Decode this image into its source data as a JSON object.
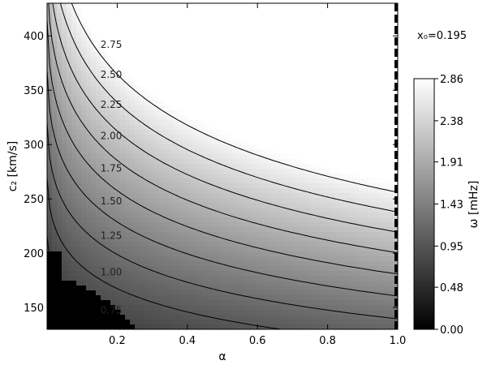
{
  "chart_data": {
    "type": "heatmap",
    "title": "",
    "xlabel": "α",
    "ylabel": "c₂ [km/s]",
    "xlim": [
      0.0,
      1.0
    ],
    "ylim": [
      130,
      430
    ],
    "x_ticks": [
      0.2,
      0.4,
      0.6,
      0.8,
      1.0
    ],
    "x_tick_labels": [
      "0.2",
      "0.4",
      "0.6",
      "0.8",
      "1.0"
    ],
    "y_ticks": [
      150,
      200,
      250,
      300,
      350,
      400
    ],
    "y_tick_labels": [
      "150",
      "200",
      "250",
      "300",
      "350",
      "400"
    ],
    "annotation": "x₀=0.195",
    "colorbar": {
      "label": "ω [mHz]",
      "range": [
        0.0,
        2.86
      ],
      "tick_values": [
        0.0,
        0.48,
        0.95,
        1.43,
        1.91,
        2.38,
        2.86
      ],
      "tick_labels": [
        "0.00",
        "0.48",
        "0.95",
        "1.43",
        "1.91",
        "2.38",
        "2.86"
      ],
      "colormap": "grayscale"
    },
    "contours": [
      {
        "level": 0.75,
        "label": "0.75"
      },
      {
        "level": 1.0,
        "label": "1.00"
      },
      {
        "level": 1.25,
        "label": "1.25"
      },
      {
        "level": 1.5,
        "label": "1.50"
      },
      {
        "level": 1.75,
        "label": "1.75"
      },
      {
        "level": 2.0,
        "label": "2.00"
      },
      {
        "level": 2.25,
        "label": "2.25"
      },
      {
        "level": 2.5,
        "label": "2.50"
      },
      {
        "level": 2.75,
        "label": "2.75"
      }
    ],
    "undefined_region_color": "#000000"
  }
}
